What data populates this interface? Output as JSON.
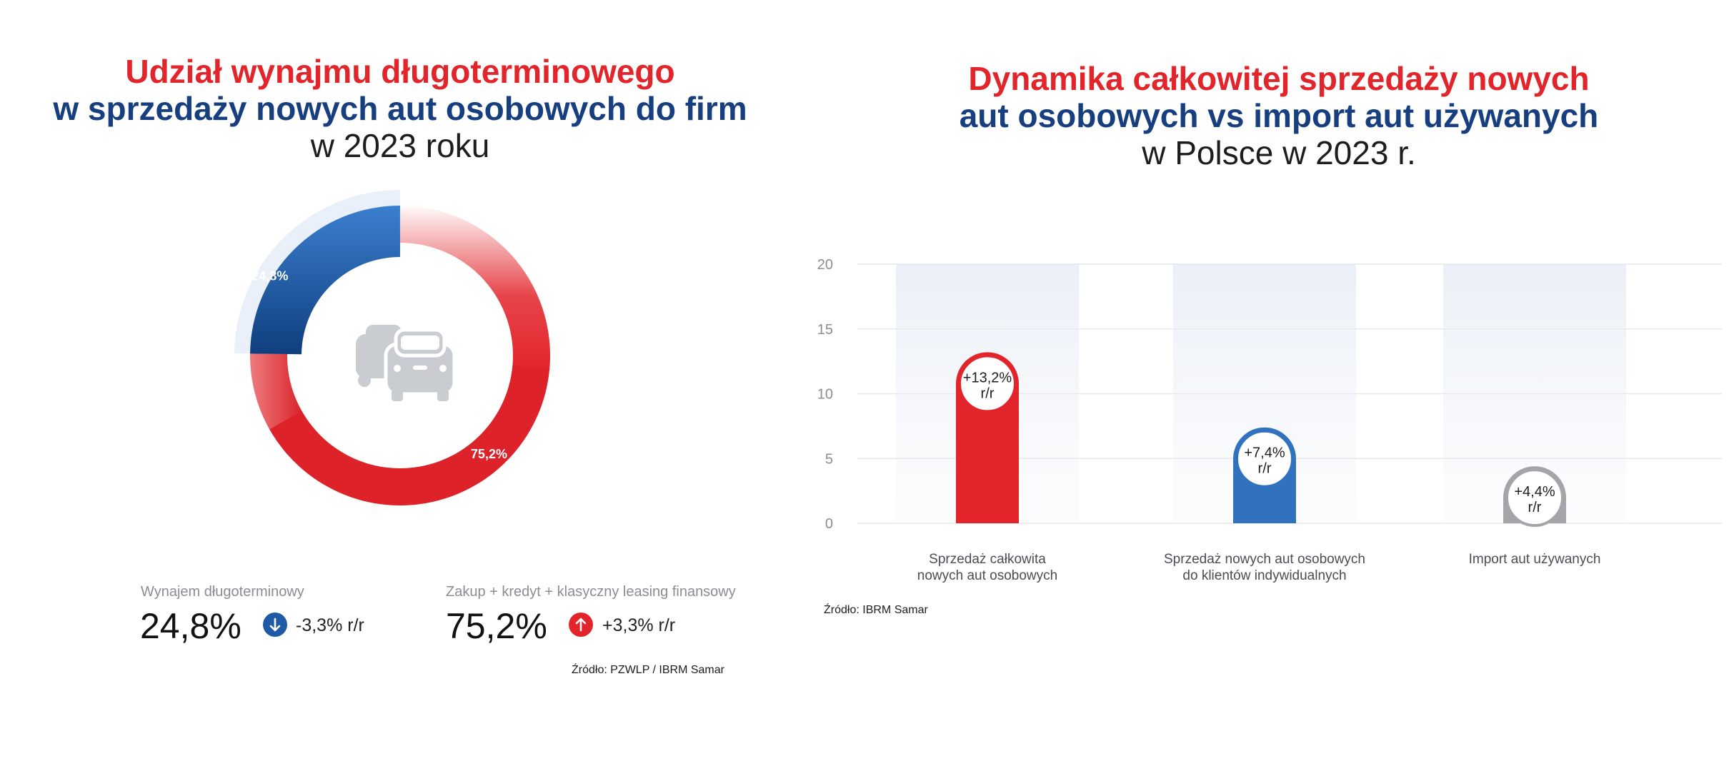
{
  "left": {
    "title": {
      "line1": "Udział wynajmu długoterminowego",
      "line2": "w sprzedaży nowych aut osobowych do firm",
      "line3": "w 2023 roku"
    },
    "stats": [
      {
        "label": "Wynajem długoterminowy",
        "value": "24,8%",
        "change": "-3,3% r/r",
        "direction": "down",
        "color": "#1e5aa6"
      },
      {
        "label": "Zakup + kredyt + klasyczny leasing finansowy",
        "value": "75,2%",
        "change": "+3,3% r/r",
        "direction": "up",
        "color": "#e2242b"
      }
    ],
    "source": "Źródło: PZWLP / IBRM Samar",
    "center_icon": "cars-icon"
  },
  "right": {
    "title": {
      "line1": "Dynamika całkowitej sprzedaży nowych",
      "line2": "aut osobowych vs import aut używanych",
      "line3": "w Polsce w 2023 r."
    },
    "source": "Źródło: IBRM Samar"
  },
  "chart_data": [
    {
      "type": "pie",
      "variant": "donut",
      "categories": [
        "Wynajem długoterminowy",
        "Zakup + kredyt + klasyczny leasing finansowy"
      ],
      "values": [
        24.8,
        75.2
      ],
      "labels": [
        "24,8%",
        "75,2%"
      ],
      "colors": [
        "#1e5aa6",
        "#e2242b"
      ]
    },
    {
      "type": "bar",
      "categories": [
        [
          "Sprzedaż całkowita",
          "nowych aut osobowych"
        ],
        [
          "Sprzedaż nowych aut osobowych",
          "do klientów indywidualnych"
        ],
        [
          "Import aut używanych"
        ]
      ],
      "values": [
        13.2,
        7.4,
        4.4
      ],
      "labels": [
        [
          "+13,2%",
          "r/r"
        ],
        [
          "+7,4%",
          "r/r"
        ],
        [
          "+4,4%",
          "r/r"
        ]
      ],
      "colors": [
        "#e2242b",
        "#3172bf",
        "#a3a5a8"
      ],
      "ylim": [
        0,
        20
      ],
      "yticks": [
        0,
        5,
        10,
        15,
        20
      ],
      "grid": true
    }
  ]
}
